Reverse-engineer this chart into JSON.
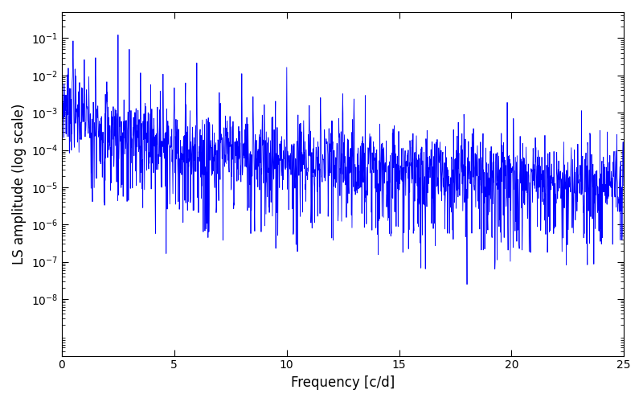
{
  "xlabel": "Frequency [c/d]",
  "ylabel": "LS amplitude (log scale)",
  "line_color": "#0000ff",
  "xlim": [
    0,
    25
  ],
  "ylim": [
    3e-10,
    0.5
  ],
  "freq_max": 25.0,
  "n_points": 2000,
  "seed": 7,
  "background_color": "#ffffff",
  "figsize": [
    8.0,
    5.0
  ],
  "dpi": 100,
  "yticks": [
    1e-08,
    1e-07,
    1e-06,
    1e-05,
    0.0001,
    0.001,
    0.01,
    0.1
  ],
  "xticks": [
    0,
    5,
    10,
    15,
    20,
    25
  ]
}
